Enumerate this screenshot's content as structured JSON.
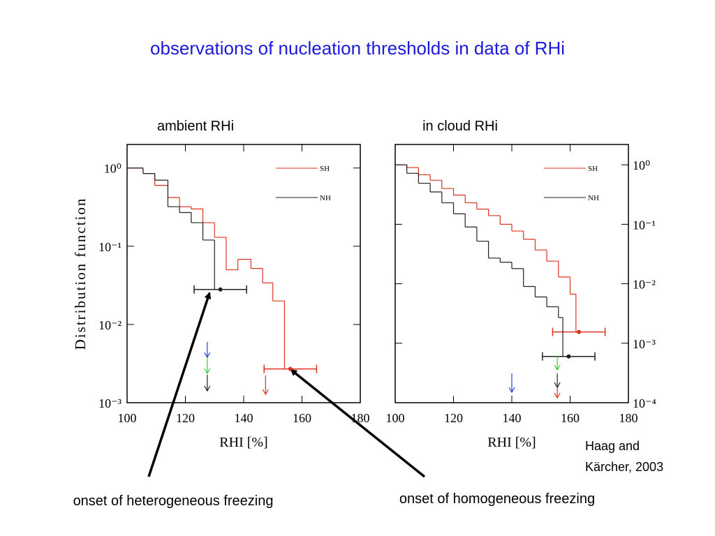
{
  "title": "observations of nucleation thresholds in data of RHi",
  "annotations": {
    "heterogeneous": "onset of heterogeneous freezing",
    "homogeneous": "onset of homogeneous freezing",
    "citation": [
      "Haag and",
      "Kärcher, 2003"
    ]
  },
  "chart_data": [
    {
      "type": "step",
      "title": "ambient RHi",
      "xlabel": "RHI [%]",
      "ylabel": "Distribution function",
      "xlim": [
        100,
        180
      ],
      "xticks": [
        100,
        120,
        140,
        160,
        180
      ],
      "ylim": [
        0.001,
        2
      ],
      "log_y": true,
      "ytick_side": "left",
      "yticks": [
        {
          "value": 1,
          "label": "10⁰"
        },
        {
          "value": 0.1,
          "label": "10⁻¹"
        },
        {
          "value": 0.01,
          "label": "10⁻²"
        },
        {
          "value": 0.001,
          "label": "10⁻³"
        }
      ],
      "series": [
        {
          "name": "SH",
          "color": "#e03020",
          "bins": [
            100,
            105.5,
            109.5,
            114,
            118,
            122,
            126,
            130,
            134,
            138,
            142.5,
            146.5,
            150,
            154
          ],
          "values": [
            1.0,
            0.85,
            0.6,
            0.42,
            0.32,
            0.3,
            0.2,
            0.13,
            0.05,
            0.068,
            0.052,
            0.034,
            0.02
          ],
          "threshold": {
            "x": 156,
            "y": 0.0027,
            "xerr": 9
          }
        },
        {
          "name": "NH",
          "color": "#202020",
          "bins": [
            100,
            105.5,
            109.5,
            114,
            118,
            122,
            126,
            130
          ],
          "values": [
            1.0,
            0.85,
            0.7,
            0.32,
            0.27,
            0.2,
            0.12
          ],
          "threshold": {
            "x": 132,
            "y": 0.028,
            "xerr": 9
          }
        }
      ],
      "arrows": [
        {
          "x": 127.5,
          "color": "#2040e0"
        },
        {
          "x": 127.5,
          "color": "#30d030"
        },
        {
          "x": 127.5,
          "color": "#202020"
        },
        {
          "x": 147.5,
          "color": "#e03020"
        }
      ]
    },
    {
      "type": "step",
      "title": "in cloud RHi",
      "xlabel": "RHI [%]",
      "xlim": [
        100,
        180
      ],
      "xticks": [
        100,
        120,
        140,
        160,
        180
      ],
      "ylim": [
        0.0001,
        2.2
      ],
      "log_y": true,
      "ytick_side": "right",
      "yticks": [
        {
          "value": 1,
          "label": "10⁰"
        },
        {
          "value": 0.1,
          "label": "10⁻¹"
        },
        {
          "value": 0.01,
          "label": "10⁻²"
        },
        {
          "value": 0.001,
          "label": "10⁻³"
        },
        {
          "value": 0.0001,
          "label": "10⁻⁴"
        }
      ],
      "series": [
        {
          "name": "SH",
          "color": "#e03020",
          "bins": [
            100,
            104,
            108,
            112,
            116,
            120,
            124,
            128,
            132,
            136,
            140,
            144,
            148,
            152,
            156,
            160,
            162
          ],
          "values": [
            1.0,
            0.9,
            0.68,
            0.55,
            0.4,
            0.31,
            0.23,
            0.18,
            0.14,
            0.1,
            0.077,
            0.056,
            0.037,
            0.024,
            0.013,
            0.0067
          ],
          "threshold": {
            "x": 163,
            "y": 0.00155,
            "xerr": 9
          }
        },
        {
          "name": "NH",
          "color": "#202020",
          "bins": [
            100,
            104,
            108,
            112,
            116,
            120,
            124,
            128,
            132,
            136,
            140,
            144,
            148,
            152,
            156,
            157.5
          ],
          "values": [
            1.0,
            0.72,
            0.49,
            0.35,
            0.23,
            0.15,
            0.09,
            0.052,
            0.027,
            0.023,
            0.018,
            0.009,
            0.006,
            0.0041,
            0.0027
          ],
          "threshold": {
            "x": 159.5,
            "y": 0.0006,
            "xerr": 9
          }
        }
      ],
      "arrows": [
        {
          "x": 140,
          "color": "#2040e0"
        },
        {
          "x": 155.6,
          "color": "#30d030"
        },
        {
          "x": 155.6,
          "color": "#202020"
        },
        {
          "x": 155.6,
          "color": "#e03020"
        }
      ]
    }
  ]
}
